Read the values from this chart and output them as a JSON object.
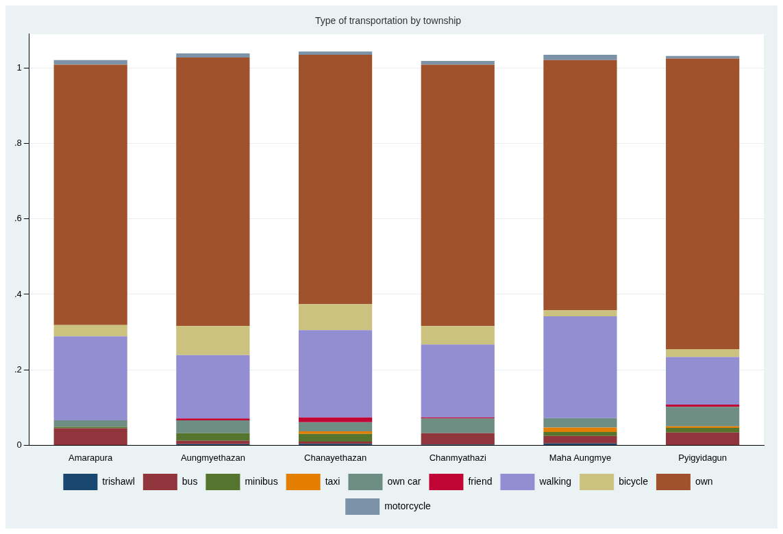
{
  "chart_data": {
    "type": "bar",
    "stacked": true,
    "title": "Type of transportation by township",
    "categories": [
      "Amarapura",
      "Aungmyethazan",
      "Chanayethazan",
      "Chanmyathazi",
      "Maha Aungmye",
      "Pyigyidagun"
    ],
    "ylim": [
      0,
      1.09
    ],
    "yticks": [
      0,
      {
        "value": 0.2,
        "label": ".2"
      },
      {
        "value": 0.4,
        "label": ".4"
      },
      {
        "value": 0.6,
        "label": ".6"
      },
      {
        "value": 0.8,
        "label": ".8"
      },
      1
    ],
    "grid": "y",
    "legend": "bottom",
    "series": [
      {
        "name": "trishawl",
        "color": "#1a476f",
        "values": [
          0,
          0.003,
          0.004,
          0.002,
          0.005,
          0
        ]
      },
      {
        "name": "bus",
        "color": "#90353b",
        "values": [
          0.045,
          0.009,
          0.006,
          0.03,
          0.02,
          0.034
        ]
      },
      {
        "name": "minibus",
        "color": "#55752f",
        "values": [
          0.004,
          0.02,
          0.02,
          0,
          0.01,
          0.012
        ]
      },
      {
        "name": "taxi",
        "color": "#e37e00",
        "values": [
          0,
          0,
          0.007,
          0,
          0.012,
          0.004
        ]
      },
      {
        "name": "own car",
        "color": "#6e8e84",
        "values": [
          0.017,
          0.034,
          0.024,
          0.039,
          0.025,
          0.052
        ]
      },
      {
        "name": "friend",
        "color": "#c10534",
        "values": [
          0,
          0.005,
          0.013,
          0.003,
          0,
          0.006
        ]
      },
      {
        "name": "walking",
        "color": "#938dd2",
        "values": [
          0.223,
          0.168,
          0.231,
          0.193,
          0.27,
          0.126
        ]
      },
      {
        "name": "bicycle",
        "color": "#cac27e",
        "values": [
          0.03,
          0.077,
          0.069,
          0.049,
          0.016,
          0.021
        ]
      },
      {
        "name": "own",
        "color": "#a0522d",
        "values": [
          0.69,
          0.712,
          0.661,
          0.693,
          0.663,
          0.77
        ]
      },
      {
        "name": "motorcycle",
        "color": "#7b92a8",
        "values": [
          0.012,
          0.011,
          0.009,
          0.01,
          0.014,
          0.007
        ]
      }
    ]
  }
}
